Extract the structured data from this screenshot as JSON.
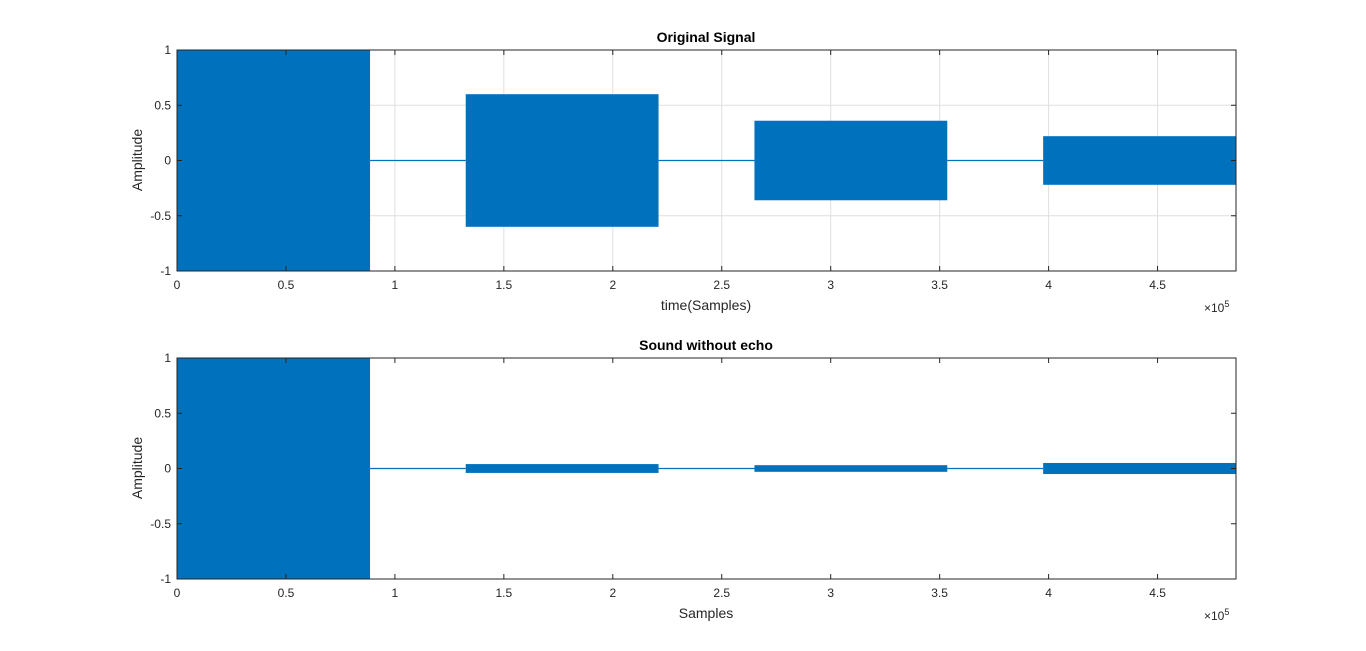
{
  "figure": {
    "background": "#ffffff"
  },
  "chart_data": [
    {
      "type": "line",
      "title": "Original Signal",
      "xlabel": "time(Samples)",
      "ylabel": "Amplitude",
      "xlim": [
        0,
        4.86
      ],
      "ylim": [
        -1,
        1
      ],
      "x_scale_label": "×10",
      "x_scale_exponent": "5",
      "x_multiplier": 100000,
      "xticks": [
        0,
        0.5,
        1,
        1.5,
        2,
        2.5,
        3,
        3.5,
        4,
        4.5
      ],
      "xtick_labels": [
        "0",
        "0.5",
        "1",
        "1.5",
        "2",
        "2.5",
        "3",
        "3.5",
        "4",
        "4.5"
      ],
      "yticks": [
        -1,
        -0.5,
        0,
        0.5,
        1
      ],
      "ytick_labels": [
        "-1",
        "-0.5",
        "0",
        "0.5",
        "1"
      ],
      "grid": true,
      "color": "#0072BD",
      "series": [
        {
          "segments": [
            {
              "x_start": 0,
              "x_end": 0.886,
              "amplitude": 1.0
            },
            {
              "x_start": 0.886,
              "x_end": 1.325,
              "amplitude": 0
            },
            {
              "x_start": 1.325,
              "x_end": 2.21,
              "amplitude": 0.6
            },
            {
              "x_start": 2.21,
              "x_end": 2.65,
              "amplitude": 0
            },
            {
              "x_start": 2.65,
              "x_end": 3.535,
              "amplitude": 0.36
            },
            {
              "x_start": 3.535,
              "x_end": 3.975,
              "amplitude": 0
            },
            {
              "x_start": 3.975,
              "x_end": 4.86,
              "amplitude": 0.22
            }
          ]
        }
      ]
    },
    {
      "type": "line",
      "title": "Sound without echo",
      "xlabel": "Samples",
      "ylabel": "Amplitude",
      "xlim": [
        0,
        4.86
      ],
      "ylim": [
        -1,
        1
      ],
      "x_scale_label": "×10",
      "x_scale_exponent": "5",
      "x_multiplier": 100000,
      "xticks": [
        0,
        0.5,
        1,
        1.5,
        2,
        2.5,
        3,
        3.5,
        4,
        4.5
      ],
      "xtick_labels": [
        "0",
        "0.5",
        "1",
        "1.5",
        "2",
        "2.5",
        "3",
        "3.5",
        "4",
        "4.5"
      ],
      "yticks": [
        -1,
        -0.5,
        0,
        0.5,
        1
      ],
      "ytick_labels": [
        "-1",
        "-0.5",
        "0",
        "0.5",
        "1"
      ],
      "grid": false,
      "color": "#0072BD",
      "series": [
        {
          "segments": [
            {
              "x_start": 0,
              "x_end": 0.886,
              "amplitude": 1.0
            },
            {
              "x_start": 0.886,
              "x_end": 1.325,
              "amplitude": 0
            },
            {
              "x_start": 1.325,
              "x_end": 2.21,
              "amplitude": 0.04
            },
            {
              "x_start": 2.21,
              "x_end": 2.65,
              "amplitude": 0
            },
            {
              "x_start": 2.65,
              "x_end": 3.535,
              "amplitude": 0.03
            },
            {
              "x_start": 3.535,
              "x_end": 3.975,
              "amplitude": 0
            },
            {
              "x_start": 3.975,
              "x_end": 4.86,
              "amplitude": 0.05
            }
          ]
        }
      ]
    }
  ]
}
